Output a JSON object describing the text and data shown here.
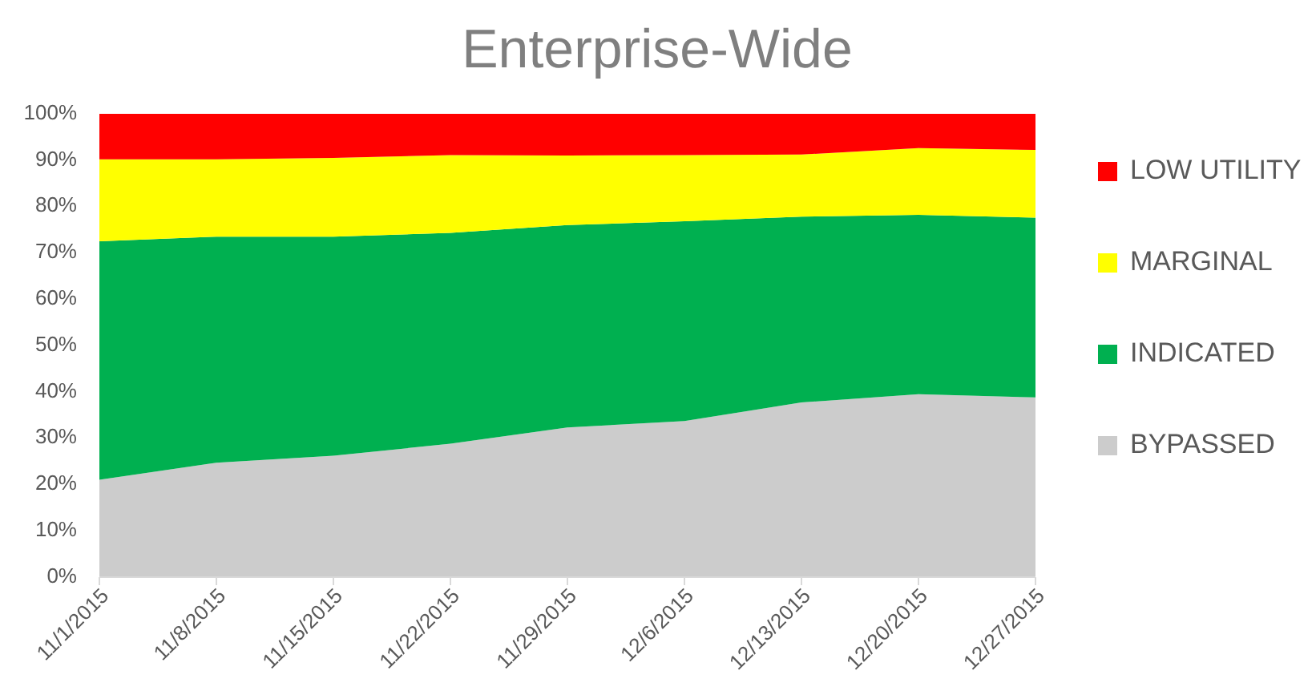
{
  "chart_data": {
    "type": "area",
    "title": "Enterprise-Wide",
    "stacked": true,
    "legend": "right",
    "categories": [
      "11/1/2015",
      "11/8/2015",
      "11/15/2015",
      "11/22/2015",
      "11/29/2015",
      "12/6/2015",
      "12/13/2015",
      "12/20/2015",
      "12/27/2015"
    ],
    "series": [
      {
        "name": "BYPASSED",
        "color": "#cccccc",
        "values": [
          21,
          24.7,
          26.2,
          28.8,
          32.3,
          33.7,
          37.7,
          39.5,
          38.8
        ]
      },
      {
        "name": "INDICATED",
        "color": "#00b050",
        "values": [
          51.5,
          48.8,
          47.3,
          45.5,
          43.7,
          43.1,
          40.1,
          38.7,
          38.8
        ]
      },
      {
        "name": "MARGINAL",
        "color": "#ffff00",
        "values": [
          17.7,
          16.7,
          17,
          16.8,
          15,
          14.3,
          13.4,
          14.4,
          14.6
        ]
      },
      {
        "name": "LOW UTILITY",
        "color": "#ff0000",
        "values": [
          9.8,
          9.8,
          9.5,
          8.9,
          9,
          8.9,
          8.8,
          7.4,
          7.8
        ]
      }
    ],
    "ylim": [
      0,
      100
    ],
    "yticks": [
      {
        "value": 0,
        "label": "0%"
      },
      {
        "value": 10,
        "label": "10%"
      },
      {
        "value": 20,
        "label": "20%"
      },
      {
        "value": 30,
        "label": "30%"
      },
      {
        "value": 40,
        "label": "40%"
      },
      {
        "value": 50,
        "label": "50%"
      },
      {
        "value": 60,
        "label": "60%"
      },
      {
        "value": 70,
        "label": "70%"
      },
      {
        "value": 80,
        "label": "80%"
      },
      {
        "value": 90,
        "label": "90%"
      },
      {
        "value": 100,
        "label": "100%"
      }
    ]
  }
}
